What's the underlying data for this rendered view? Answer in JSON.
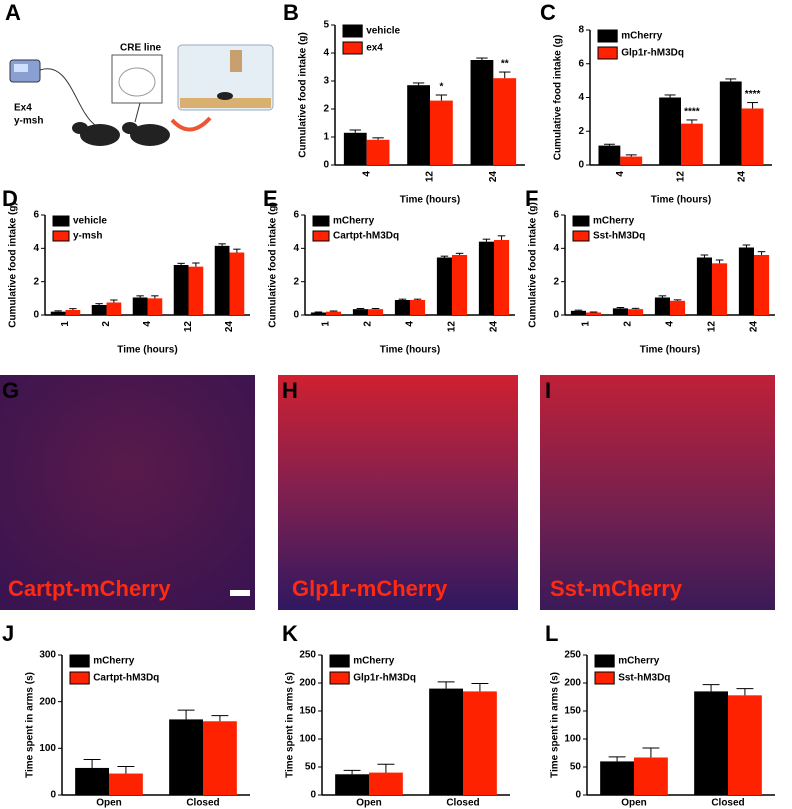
{
  "panels": [
    "A",
    "B",
    "C",
    "D",
    "E",
    "F",
    "G",
    "H",
    "I",
    "J",
    "K",
    "L"
  ],
  "diagram": {
    "pump_labels": [
      "Ex4",
      "y-msh"
    ],
    "cre_label": "CRE line"
  },
  "images": [
    {
      "label": "Cartpt-mCherry"
    },
    {
      "label": "Glp1r-mCherry"
    },
    {
      "label": "Sst-mCherry"
    }
  ],
  "chart_data": [
    {
      "type": "bar",
      "xlabel": "Time (hours)",
      "ylabel": "Cumulative food intake (g)",
      "categories": [
        "4",
        "12",
        "24"
      ],
      "xtick_rotation": 90,
      "legend": "top-left",
      "series": [
        {
          "name": "vehicle",
          "color": "#000000",
          "values": [
            1.15,
            2.85,
            3.75
          ],
          "errors": [
            0.1,
            0.08,
            0.07
          ]
        },
        {
          "name": "ex4",
          "color": "#ff2200",
          "values": [
            0.9,
            2.3,
            3.1
          ],
          "errors": [
            0.07,
            0.2,
            0.22
          ]
        }
      ],
      "ylim": [
        0,
        5
      ],
      "yticks": [
        0,
        1,
        2,
        3,
        4,
        5
      ],
      "annotations": [
        {
          "category": "12",
          "text": "*"
        },
        {
          "category": "24",
          "text": "**"
        }
      ]
    },
    {
      "type": "bar",
      "xlabel": "Time (hours)",
      "ylabel": "Cumulative food intake (g)",
      "categories": [
        "4",
        "12",
        "24"
      ],
      "xtick_rotation": 90,
      "legend": "top-left",
      "series": [
        {
          "name": "mCherry",
          "color": "#000000",
          "values": [
            1.15,
            4.0,
            4.95
          ],
          "errors": [
            0.08,
            0.15,
            0.15
          ]
        },
        {
          "name": "Glp1r-hM3Dq",
          "color": "#ff2200",
          "values": [
            0.5,
            2.45,
            3.35
          ],
          "errors": [
            0.1,
            0.22,
            0.35
          ]
        }
      ],
      "ylim": [
        0,
        8
      ],
      "yticks": [
        0,
        2,
        4,
        6,
        8
      ],
      "annotations": [
        {
          "category": "12",
          "text": "****"
        },
        {
          "category": "24",
          "text": "****"
        }
      ]
    },
    {
      "type": "bar",
      "xlabel": "Time (hours)",
      "ylabel": "Cumulative food intake (g)",
      "categories": [
        "1",
        "2",
        "4",
        "12",
        "24"
      ],
      "xtick_rotation": 90,
      "legend": "top-left",
      "series": [
        {
          "name": "vehicle",
          "color": "#000000",
          "values": [
            0.2,
            0.6,
            1.05,
            3.0,
            4.15
          ],
          "errors": [
            0.05,
            0.08,
            0.1,
            0.1,
            0.12
          ]
        },
        {
          "name": "y-msh",
          "color": "#ff2200",
          "values": [
            0.3,
            0.75,
            1.0,
            2.9,
            3.75
          ],
          "errors": [
            0.08,
            0.15,
            0.15,
            0.22,
            0.2
          ]
        }
      ],
      "ylim": [
        0,
        6
      ],
      "yticks": [
        0,
        2,
        4,
        6
      ]
    },
    {
      "type": "bar",
      "xlabel": "Time (hours)",
      "ylabel": "Cumulative food intake (g)",
      "categories": [
        "1",
        "2",
        "4",
        "12",
        "24"
      ],
      "xtick_rotation": 90,
      "legend": "top-left",
      "series": [
        {
          "name": "mCherry",
          "color": "#000000",
          "values": [
            0.15,
            0.35,
            0.9,
            3.45,
            4.4
          ],
          "errors": [
            0.03,
            0.04,
            0.05,
            0.08,
            0.15
          ]
        },
        {
          "name": "Cartpt-hM3Dq",
          "color": "#ff2200",
          "values": [
            0.2,
            0.35,
            0.9,
            3.6,
            4.5
          ],
          "errors": [
            0.04,
            0.04,
            0.05,
            0.1,
            0.25
          ]
        }
      ],
      "ylim": [
        0,
        6
      ],
      "yticks": [
        0,
        2,
        4,
        6
      ]
    },
    {
      "type": "bar",
      "xlabel": "Time (hours)",
      "ylabel": "Cumulative food intake (g)",
      "categories": [
        "1",
        "2",
        "4",
        "12",
        "24"
      ],
      "xtick_rotation": 90,
      "legend": "top-left",
      "series": [
        {
          "name": "mCherry",
          "color": "#000000",
          "values": [
            0.25,
            0.4,
            1.05,
            3.45,
            4.05
          ],
          "errors": [
            0.04,
            0.05,
            0.1,
            0.15,
            0.15
          ]
        },
        {
          "name": "Sst-hM3Dq",
          "color": "#ff2200",
          "values": [
            0.15,
            0.35,
            0.85,
            3.1,
            3.6
          ],
          "errors": [
            0.03,
            0.05,
            0.06,
            0.2,
            0.2
          ]
        }
      ],
      "ylim": [
        0,
        6
      ],
      "yticks": [
        0,
        2,
        4,
        6
      ]
    },
    {
      "type": "bar",
      "ylabel": "Time spent in arms  (s)",
      "categories": [
        "Open",
        "Closed"
      ],
      "legend": "top-left",
      "series": [
        {
          "name": "mCherry",
          "color": "#000000",
          "values": [
            58,
            162
          ],
          "errors": [
            18,
            20
          ]
        },
        {
          "name": "Cartpt-hM3Dq",
          "color": "#ff2200",
          "values": [
            46,
            158
          ],
          "errors": [
            15,
            12
          ]
        }
      ],
      "ylim": [
        0,
        300
      ],
      "yticks": [
        0,
        100,
        200,
        300
      ]
    },
    {
      "type": "bar",
      "ylabel": "Time spent in arms  (s)",
      "categories": [
        "Open",
        "Closed"
      ],
      "legend": "top-left",
      "series": [
        {
          "name": "mCherry",
          "color": "#000000",
          "values": [
            37,
            190
          ],
          "errors": [
            7,
            12
          ]
        },
        {
          "name": "Glp1r-hM3Dq",
          "color": "#ff2200",
          "values": [
            40,
            185
          ],
          "errors": [
            15,
            14
          ]
        }
      ],
      "ylim": [
        0,
        250
      ],
      "yticks": [
        0,
        50,
        100,
        150,
        200,
        250
      ]
    },
    {
      "type": "bar",
      "ylabel": "Time spent in arms  (s)",
      "categories": [
        "Open",
        "Closed"
      ],
      "legend": "top-left",
      "series": [
        {
          "name": "mCherry",
          "color": "#000000",
          "values": [
            60,
            185
          ],
          "errors": [
            8,
            12
          ]
        },
        {
          "name": "Sst-hM3Dq",
          "color": "#ff2200",
          "values": [
            67,
            178
          ],
          "errors": [
            17,
            12
          ]
        }
      ],
      "ylim": [
        0,
        250
      ],
      "yticks": [
        0,
        50,
        100,
        150,
        200,
        250
      ]
    }
  ]
}
